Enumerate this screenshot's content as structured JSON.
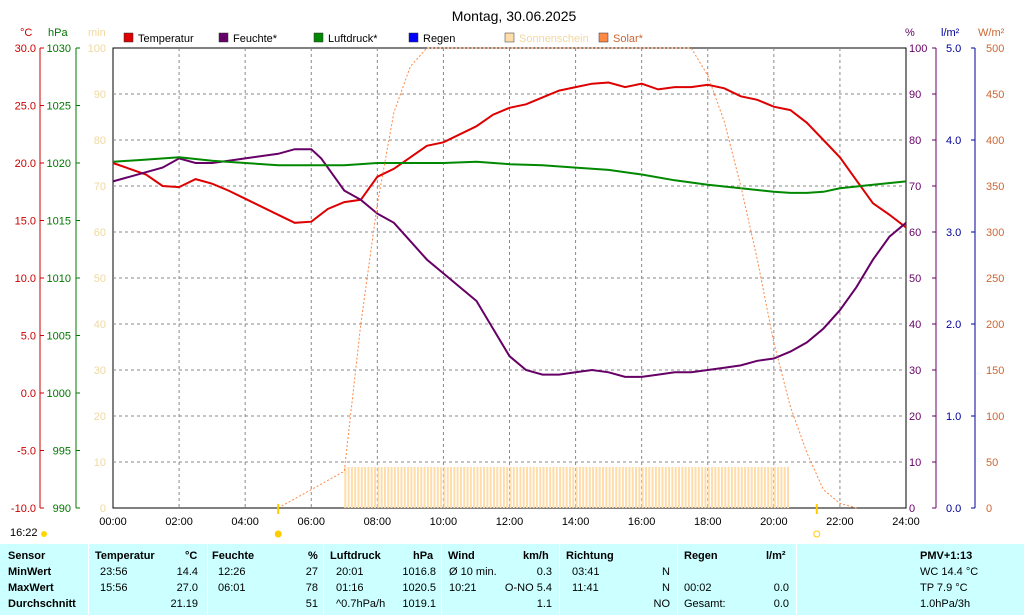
{
  "chart_data": {
    "type": "line",
    "title": "Montag, 30.06.2025",
    "axis_units": {
      "temp": "°C",
      "pressure": "hPa",
      "sunshine": "min",
      "humidity": "%",
      "rain": "l/m²",
      "solar": "W/m²"
    },
    "x_ticks": [
      "00:00",
      "02:00",
      "04:00",
      "06:00",
      "08:00",
      "10:00",
      "12:00",
      "14:00",
      "16:00",
      "18:00",
      "20:00",
      "22:00",
      "24:00"
    ],
    "y_axes": {
      "temp": {
        "range": [
          -10,
          30
        ],
        "ticks": [
          "30.0",
          "25.0",
          "20.0",
          "15.0",
          "10.0",
          "5.0",
          "0.0",
          "-5.0",
          "-10.0"
        ],
        "color": "#cc0000"
      },
      "pressure": {
        "range": [
          990,
          1030
        ],
        "ticks": [
          "1030",
          "1025",
          "1020",
          "1015",
          "1010",
          "1005",
          "1000",
          "995",
          "990"
        ],
        "color": "#007700"
      },
      "sunshine": {
        "range": [
          0,
          100
        ],
        "ticks": [
          "100",
          "90",
          "80",
          "70",
          "60",
          "50",
          "40",
          "30",
          "20",
          "10",
          "0"
        ],
        "color": "#f0d8a0"
      },
      "humidity": {
        "range": [
          0,
          100
        ],
        "ticks": [
          "100",
          "90",
          "80",
          "70",
          "60",
          "50",
          "40",
          "30",
          "20",
          "10",
          "0"
        ],
        "color": "#660066"
      },
      "rain": {
        "range": [
          0,
          5
        ],
        "ticks": [
          "5.0",
          "4.0",
          "3.0",
          "2.0",
          "1.0",
          "0.0"
        ],
        "color": "#000099"
      },
      "solar": {
        "range": [
          0,
          500
        ],
        "ticks": [
          "500",
          "450",
          "400",
          "350",
          "300",
          "250",
          "200",
          "150",
          "100",
          "50",
          "0"
        ],
        "color": "#cc6633"
      }
    },
    "legend": [
      {
        "name": "Temperatur",
        "color": "#dd0000"
      },
      {
        "name": "Feuchte*",
        "color": "#660066"
      },
      {
        "name": "Luftdruck*",
        "color": "#008800"
      },
      {
        "name": "Regen",
        "color": "#0000ff"
      },
      {
        "name": "Sonnenschein",
        "color": "#ffddaa"
      },
      {
        "name": "Solar*",
        "color": "#ff8844"
      }
    ],
    "series": [
      {
        "name": "Temperatur",
        "axis": "temp",
        "color": "#dd0000",
        "x": [
          0,
          1,
          1.5,
          2,
          2.5,
          3,
          3.5,
          4,
          5,
          5.5,
          6,
          6.5,
          7,
          7.5,
          8,
          8.5,
          9,
          9.5,
          10,
          11,
          11.5,
          12,
          12.5,
          13,
          13.5,
          14,
          14.5,
          15,
          15.5,
          16,
          16.5,
          17,
          17.5,
          18,
          18.5,
          19,
          19.5,
          20,
          20.5,
          21,
          21.5,
          22,
          22.5,
          23,
          23.5,
          24
        ],
        "y": [
          20.0,
          19.0,
          18.0,
          17.9,
          18.6,
          18.2,
          17.6,
          16.9,
          15.5,
          14.8,
          14.9,
          16.0,
          16.6,
          16.8,
          18.8,
          19.5,
          20.5,
          21.5,
          21.8,
          23.2,
          24.2,
          24.8,
          25.1,
          25.7,
          26.3,
          26.6,
          26.9,
          27.0,
          26.6,
          26.9,
          26.4,
          26.6,
          26.6,
          26.8,
          26.5,
          25.8,
          25.5,
          24.9,
          24.6,
          23.5,
          22.0,
          20.5,
          18.5,
          16.5,
          15.5,
          14.4
        ]
      },
      {
        "name": "Feuchte*",
        "axis": "humidity",
        "color": "#660066",
        "x": [
          0,
          0.5,
          1,
          1.5,
          2,
          2.5,
          3,
          3.5,
          4,
          5,
          5.5,
          6,
          6.3,
          6.5,
          7,
          7.5,
          8,
          8.5,
          9,
          9.5,
          10,
          11,
          11.5,
          12,
          12.5,
          13,
          13.5,
          14,
          14.5,
          15,
          15.5,
          16,
          16.5,
          17,
          17.5,
          18,
          18.5,
          19,
          19.5,
          20,
          20.5,
          21,
          21.5,
          22,
          22.5,
          23,
          23.5,
          24
        ],
        "y": [
          71,
          72,
          73,
          74,
          76,
          75,
          75,
          75.5,
          76,
          77,
          78,
          78,
          76,
          74,
          69,
          67,
          64,
          62,
          58,
          54,
          51,
          45,
          39,
          33,
          30,
          29,
          29,
          29.5,
          30,
          29.5,
          28.5,
          28.5,
          29,
          29.5,
          29.5,
          30,
          30.5,
          31,
          32,
          32.5,
          34,
          36,
          39,
          43,
          48,
          54,
          59,
          62
        ]
      },
      {
        "name": "Luftdruck*",
        "axis": "pressure",
        "color": "#008800",
        "x": [
          0,
          1,
          2,
          3,
          4,
          5,
          6,
          7,
          8,
          9,
          10,
          11,
          12,
          13,
          14,
          15,
          16,
          17,
          18,
          19,
          20,
          20.5,
          21,
          21.5,
          22,
          23,
          24
        ],
        "y": [
          1020.1,
          1020.3,
          1020.5,
          1020.2,
          1020.0,
          1019.8,
          1019.8,
          1019.8,
          1020.0,
          1020.0,
          1020.0,
          1020.1,
          1019.9,
          1019.8,
          1019.6,
          1019.4,
          1019.0,
          1018.5,
          1018.1,
          1017.8,
          1017.5,
          1017.4,
          1017.4,
          1017.5,
          1017.8,
          1018.1,
          1018.4
        ]
      },
      {
        "name": "Solar*",
        "axis": "solar",
        "color": "#ff8844",
        "x": [
          5,
          5.5,
          6,
          6.5,
          7,
          7.5,
          8,
          8.5,
          9,
          9.5,
          9.8,
          10,
          17.5,
          18,
          18.5,
          19,
          19.5,
          20,
          20.5,
          21,
          21.5,
          22,
          22.5
        ],
        "y": [
          0,
          10,
          20,
          30,
          40,
          200,
          330,
          430,
          480,
          500,
          500,
          500,
          500,
          470,
          420,
          350,
          270,
          180,
          110,
          60,
          20,
          5,
          0
        ]
      },
      {
        "name": "Sonnenschein",
        "axis": "sunshine",
        "color": "#ffddaa",
        "bars": {
          "start": 7.0,
          "end": 20.5,
          "value": 5
        }
      }
    ]
  },
  "clock": "16:22",
  "stats": {
    "headers": {
      "sensor": "Sensor",
      "temp": "Temperatur",
      "temp_unit": "°C",
      "hum": "Feuchte",
      "hum_unit": "%",
      "press": "Luftdruck",
      "press_unit": "hPa",
      "wind": "Wind",
      "wind_unit": "km/h",
      "dir": "Richtung",
      "rain": "Regen",
      "rain_unit": "l/m²",
      "pmv": "PMV+1:13"
    },
    "rows": [
      {
        "label": "MinWert",
        "temp_time": "23:56",
        "temp_val": "14.4",
        "hum_time": "12:26",
        "hum_val": "27",
        "press_time": "20:01",
        "press_val": "1016.8",
        "wind_label": "Ø 10 min.",
        "wind_val": "0.3",
        "dir_time": "03:41",
        "dir_val": "N",
        "rain_time": "",
        "rain_val": "",
        "extra": "WC 14.4 °C"
      },
      {
        "label": "MaxWert",
        "temp_time": "15:56",
        "temp_val": "27.0",
        "hum_time": "06:01",
        "hum_val": "78",
        "press_time": "01:16",
        "press_val": "1020.5",
        "wind_label": "10:21",
        "wind_val": "O-NO 5.4",
        "dir_time": "11:41",
        "dir_val": "N",
        "rain_time": "00:02",
        "rain_val": "0.0",
        "extra": "TP 7.9 °C"
      },
      {
        "label": "Durchschnitt",
        "temp_time": "",
        "temp_val": "21.19",
        "hum_time": "",
        "hum_val": "51",
        "press_time": "^0.7hPa/h",
        "press_val": "1019.1",
        "wind_label": "",
        "wind_val": "1.1",
        "dir_time": "",
        "dir_val": "NO",
        "rain_time": "Gesamt:",
        "rain_val": "0.0",
        "extra": "1.0hPa/3h"
      }
    ]
  }
}
